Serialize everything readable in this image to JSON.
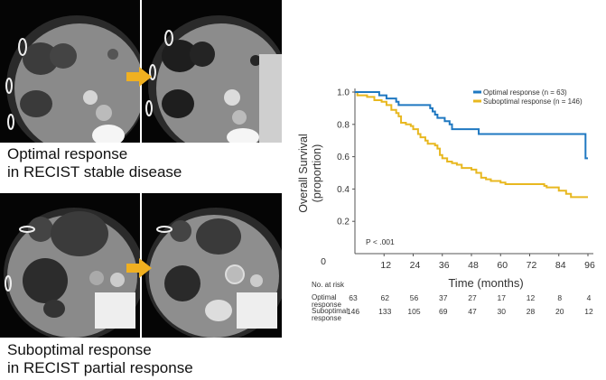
{
  "left_panel": {
    "top_caption_line1": "Optimal response",
    "top_caption_line2": "in RECIST stable disease",
    "bottom_caption_line1": "Suboptimal response",
    "bottom_caption_line2": "in RECIST partial response",
    "arrow_color": "#f0b020"
  },
  "chart_data": {
    "type": "line",
    "subtype": "kaplan-meier",
    "ylabel_line1": "Overall Survival",
    "ylabel_line2": "(proportion)",
    "xlabel": "Time (months)",
    "xlim": [
      0,
      96
    ],
    "ylim": [
      0,
      1.0
    ],
    "x_ticks": [
      0,
      12,
      24,
      36,
      48,
      60,
      72,
      84,
      96
    ],
    "x_tick_labels": [
      "0",
      "12",
      "24",
      "36",
      "48",
      "60",
      "72",
      "84",
      "96"
    ],
    "y_ticks": [
      0.2,
      0.4,
      0.6,
      0.8,
      1.0
    ],
    "y_tick_labels": [
      "0.2",
      "0.4",
      "0.6",
      "0.8",
      "1.0"
    ],
    "y_origin_label": "0",
    "grid": false,
    "legend_position": "top-right",
    "annotation": "P < .001",
    "series": [
      {
        "name": "Optimal response (n = 63)",
        "color": "#1f78c1",
        "steps": [
          [
            0,
            1.0
          ],
          [
            10,
            0.98
          ],
          [
            13,
            0.96
          ],
          [
            17,
            0.94
          ],
          [
            18,
            0.92
          ],
          [
            31,
            0.9
          ],
          [
            32,
            0.88
          ],
          [
            33,
            0.86
          ],
          [
            34,
            0.84
          ],
          [
            37,
            0.82
          ],
          [
            39,
            0.8
          ],
          [
            40,
            0.77
          ],
          [
            51,
            0.74
          ],
          [
            95,
            0.59
          ],
          [
            96,
            0.59
          ]
        ]
      },
      {
        "name": "Suboptimal response (n = 146)",
        "color": "#e8b820",
        "steps": [
          [
            0,
            1.0
          ],
          [
            1,
            0.98
          ],
          [
            5,
            0.97
          ],
          [
            8,
            0.95
          ],
          [
            11,
            0.94
          ],
          [
            13,
            0.92
          ],
          [
            15,
            0.89
          ],
          [
            17,
            0.87
          ],
          [
            18,
            0.85
          ],
          [
            19,
            0.81
          ],
          [
            21,
            0.8
          ],
          [
            23,
            0.79
          ],
          [
            24,
            0.77
          ],
          [
            26,
            0.74
          ],
          [
            27,
            0.72
          ],
          [
            29,
            0.7
          ],
          [
            30,
            0.68
          ],
          [
            33,
            0.67
          ],
          [
            34,
            0.65
          ],
          [
            35,
            0.61
          ],
          [
            36,
            0.59
          ],
          [
            38,
            0.57
          ],
          [
            40,
            0.56
          ],
          [
            42,
            0.55
          ],
          [
            44,
            0.53
          ],
          [
            48,
            0.52
          ],
          [
            50,
            0.5
          ],
          [
            52,
            0.47
          ],
          [
            54,
            0.46
          ],
          [
            56,
            0.45
          ],
          [
            60,
            0.44
          ],
          [
            62,
            0.43
          ],
          [
            78,
            0.42
          ],
          [
            79,
            0.41
          ],
          [
            84,
            0.39
          ],
          [
            87,
            0.37
          ],
          [
            89,
            0.35
          ],
          [
            96,
            0.35
          ]
        ]
      }
    ],
    "risk_table": {
      "title": "No. at risk",
      "times": [
        0,
        12,
        24,
        36,
        48,
        60,
        72,
        84,
        96
      ],
      "rows": [
        {
          "label_line1": "Optimal",
          "label_line2": "response",
          "values": [
            63,
            62,
            56,
            37,
            27,
            17,
            12,
            8,
            4
          ]
        },
        {
          "label_line1": "Suboptimal",
          "label_line2": "response",
          "values": [
            146,
            133,
            105,
            69,
            47,
            30,
            28,
            20,
            12
          ]
        }
      ]
    }
  }
}
